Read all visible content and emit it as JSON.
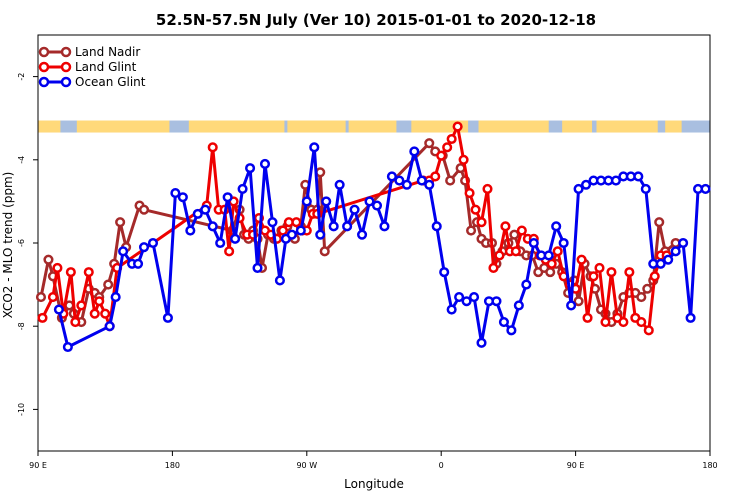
{
  "chart_data": {
    "type": "line",
    "title": "52.5N-57.5N July (Ver 10)   2015-01-01 to 2020-12-18",
    "xlabel": "Longitude",
    "ylabel": "XCO2 - MLO trend (ppm)",
    "x_ticks": [
      {
        "value": 90,
        "label": "90 E"
      },
      {
        "value": 180,
        "label": "180"
      },
      {
        "value": 270,
        "label": "90 W"
      },
      {
        "value": 360,
        "label": "0"
      },
      {
        "value": 450,
        "label": "90 E"
      },
      {
        "value": 540,
        "label": "180"
      }
    ],
    "y_ticks": [
      {
        "value": -2,
        "label": "-2"
      },
      {
        "value": -4,
        "label": "-4"
      },
      {
        "value": -6,
        "label": "-6"
      },
      {
        "value": -8,
        "label": "-8"
      },
      {
        "value": -10,
        "label": "-10"
      }
    ],
    "xlim": [
      90,
      540
    ],
    "ylim": [
      -11,
      -1
    ],
    "grid": false,
    "legend_position": "top-left",
    "land_mask_band": {
      "y_center": -3.2,
      "land_color": "#FFD97A",
      "ocean_color": "#A9BFE0"
    },
    "series": [
      {
        "name": "Land Nadir",
        "color": "#A52A2A",
        "x": [
          92,
          97,
          100,
          106,
          111,
          114,
          119,
          124,
          128,
          131,
          137,
          141,
          145,
          149,
          158,
          161,
          220,
          225,
          228,
          231,
          234,
          237,
          240,
          244,
          248,
          253,
          257,
          262,
          266,
          269,
          273,
          277,
          279,
          282,
          352,
          356,
          361,
          366,
          373,
          376,
          380,
          384,
          387,
          390,
          394,
          397,
          401,
          405,
          409,
          413,
          417,
          421,
          425,
          429,
          433,
          437,
          441,
          445,
          449,
          452,
          456,
          460,
          463,
          467,
          470,
          474,
          478,
          482,
          486,
          490,
          494,
          498,
          502,
          506,
          510,
          517
        ],
        "y": [
          -7.3,
          -6.4,
          -6.8,
          -7.8,
          -7.5,
          -7.7,
          -7.9,
          -7.1,
          -7.2,
          -7.3,
          -7.0,
          -6.5,
          -5.5,
          -6.1,
          -5.1,
          -5.2,
          -5.7,
          -5.2,
          -5.8,
          -5.9,
          -5.7,
          -5.9,
          -6.6,
          -5.8,
          -5.9,
          -5.7,
          -5.6,
          -5.9,
          -5.6,
          -4.6,
          -5.2,
          -5.2,
          -4.3,
          -6.2,
          -3.6,
          -3.8,
          -3.9,
          -4.5,
          -4.2,
          -4.5,
          -5.7,
          -5.5,
          -5.9,
          -6.0,
          -6.0,
          -6.5,
          -6.2,
          -6.0,
          -5.8,
          -6.2,
          -6.3,
          -6.3,
          -6.7,
          -6.6,
          -6.7,
          -6.5,
          -6.7,
          -7.2,
          -6.9,
          -7.4,
          -6.5,
          -6.8,
          -7.1,
          -7.6,
          -7.7,
          -7.9,
          -7.7,
          -7.3,
          -7.2,
          -7.2,
          -7.3,
          -7.1,
          -6.9,
          -5.5,
          -6.2,
          -6.0
        ],
        "marker": "circle"
      },
      {
        "name": "Land Glint",
        "color": "#EE0000",
        "x": [
          93,
          100,
          103,
          107,
          112,
          115,
          119,
          124,
          128,
          131,
          135,
          138,
          143,
          203,
          207,
          211,
          215,
          218,
          221,
          225,
          230,
          234,
          238,
          242,
          246,
          250,
          254,
          258,
          263,
          267,
          270,
          274,
          277,
          348,
          352,
          356,
          360,
          364,
          367,
          371,
          375,
          379,
          383,
          387,
          391,
          395,
          399,
          403,
          406,
          410,
          414,
          418,
          422,
          426,
          430,
          434,
          438,
          442,
          446,
          450,
          454,
          458,
          462,
          466,
          470,
          474,
          478,
          482,
          486,
          490,
          494,
          499,
          503,
          507,
          511
        ],
        "y": [
          -7.8,
          -7.3,
          -6.6,
          -7.7,
          -6.7,
          -7.9,
          -7.5,
          -6.7,
          -7.7,
          -7.4,
          -7.7,
          -8.0,
          -6.6,
          -5.1,
          -3.7,
          -5.2,
          -5.2,
          -6.2,
          -5.0,
          -5.4,
          -5.8,
          -5.8,
          -5.4,
          -5.7,
          -5.8,
          -5.9,
          -5.7,
          -5.5,
          -5.5,
          -5.7,
          -5.7,
          -5.3,
          -5.3,
          -4.5,
          -4.5,
          -4.4,
          -3.9,
          -3.7,
          -3.5,
          -3.2,
          -4.0,
          -4.8,
          -5.2,
          -5.5,
          -4.7,
          -6.6,
          -6.3,
          -5.6,
          -6.2,
          -6.2,
          -5.7,
          -5.9,
          -5.9,
          -6.3,
          -6.4,
          -6.5,
          -6.2,
          -6.8,
          -7.0,
          -7.1,
          -6.4,
          -7.8,
          -6.8,
          -6.6,
          -7.9,
          -6.7,
          -7.8,
          -7.9,
          -6.7,
          -7.8,
          -7.9,
          -8.1,
          -6.8,
          -6.3,
          -6.3
        ],
        "marker": "circle"
      },
      {
        "name": "Ocean Glint",
        "color": "#0000EE",
        "x": [
          104,
          110,
          138,
          142,
          147,
          153,
          157,
          161,
          167,
          177,
          182,
          187,
          192,
          197,
          202,
          207,
          212,
          217,
          222,
          227,
          232,
          237,
          242,
          247,
          252,
          256,
          260,
          266,
          270,
          275,
          279,
          283,
          288,
          292,
          297,
          302,
          307,
          312,
          317,
          322,
          327,
          332,
          337,
          342,
          347,
          352,
          357,
          362,
          367,
          372,
          377,
          382,
          387,
          392,
          397,
          402,
          407,
          412,
          417,
          422,
          427,
          432,
          437,
          442,
          447,
          452,
          457,
          462,
          467,
          472,
          477,
          482,
          487,
          492,
          497,
          502,
          507,
          512,
          517,
          522,
          527,
          532,
          537
        ],
        "y": [
          -7.6,
          -8.5,
          -8.0,
          -7.3,
          -6.2,
          -6.5,
          -6.5,
          -6.1,
          -6.0,
          -7.8,
          -4.8,
          -4.9,
          -5.7,
          -5.3,
          -5.2,
          -5.6,
          -6.0,
          -4.9,
          -5.9,
          -4.7,
          -4.2,
          -6.6,
          -4.1,
          -5.5,
          -6.9,
          -5.9,
          -5.8,
          -5.7,
          -5.0,
          -3.7,
          -5.8,
          -5.0,
          -5.6,
          -4.6,
          -5.6,
          -5.2,
          -5.8,
          -5.0,
          -5.1,
          -5.6,
          -4.4,
          -4.5,
          -4.6,
          -3.8,
          -4.5,
          -4.6,
          -5.6,
          -6.7,
          -7.6,
          -7.3,
          -7.4,
          -7.3,
          -8.4,
          -7.4,
          -7.4,
          -7.9,
          -8.1,
          -7.5,
          -7.0,
          -6.0,
          -6.3,
          -6.3,
          -5.6,
          -6.0,
          -7.5,
          -4.7,
          -4.6,
          -4.5,
          -4.5,
          -4.5,
          -4.5,
          -4.4,
          -4.4,
          -4.4,
          -4.7,
          -6.5,
          -6.5,
          -6.4,
          -6.2,
          -6.0,
          -7.8,
          -4.7,
          -4.7
        ],
        "marker": "circle"
      }
    ]
  }
}
